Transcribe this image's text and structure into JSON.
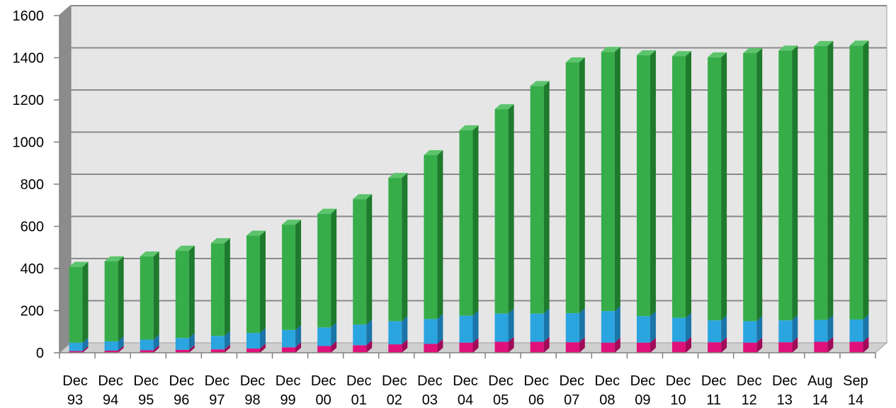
{
  "chart_data": {
    "type": "bar",
    "stacked": true,
    "three_d": true,
    "categories": [
      [
        "Dec",
        "93"
      ],
      [
        "Dec",
        "94"
      ],
      [
        "Dec",
        "95"
      ],
      [
        "Dec",
        "96"
      ],
      [
        "Dec",
        "97"
      ],
      [
        "Dec",
        "98"
      ],
      [
        "Dec",
        "99"
      ],
      [
        "Dec",
        "00"
      ],
      [
        "Dec",
        "01"
      ],
      [
        "Dec",
        "02"
      ],
      [
        "Dec",
        "03"
      ],
      [
        "Dec",
        "04"
      ],
      [
        "Dec",
        "05"
      ],
      [
        "Dec",
        "06"
      ],
      [
        "Dec",
        "07"
      ],
      [
        "Dec",
        "08"
      ],
      [
        "Dec",
        "09"
      ],
      [
        "Dec",
        "10"
      ],
      [
        "Dec",
        "11"
      ],
      [
        "Dec",
        "12"
      ],
      [
        "Dec",
        "13"
      ],
      [
        "Aug",
        "14"
      ],
      [
        "Sep",
        "14"
      ]
    ],
    "series": [
      {
        "color": "#E0107A",
        "side_color": "#A00A58",
        "top_color": "#F050A0",
        "values": [
          8,
          10,
          12,
          14,
          16,
          20,
          26,
          32,
          36,
          40,
          42,
          48,
          52,
          52,
          50,
          48,
          48,
          52,
          50,
          48,
          50,
          52,
          52
        ]
      },
      {
        "color": "#2BA5E0",
        "side_color": "#1A75A8",
        "top_color": "#6CC4EE",
        "values": [
          40,
          44,
          50,
          56,
          64,
          74,
          82,
          88,
          98,
          110,
          118,
          128,
          134,
          134,
          138,
          150,
          126,
          114,
          104,
          102,
          104,
          104,
          106
        ]
      },
      {
        "color": "#37AD4A",
        "side_color": "#1E7A2C",
        "top_color": "#5CC46C",
        "values": [
          360,
          380,
          395,
          415,
          440,
          462,
          500,
          540,
          595,
          680,
          778,
          880,
          970,
          1080,
          1190,
          1230,
          1238,
          1242,
          1248,
          1272,
          1280,
          1300,
          1300
        ]
      }
    ],
    "title": "",
    "xlabel": "",
    "ylabel": "",
    "ylim": [
      0,
      1600
    ],
    "yticks": [
      0,
      200,
      400,
      600,
      800,
      1000,
      1200,
      1400,
      1600
    ],
    "grid": true,
    "legend": "none",
    "wall_color": "#E6E6E6",
    "side_wall_color": "#8C8C8C",
    "floor_color": "#D0D0D0",
    "grid_color": "#8A8A8A"
  }
}
